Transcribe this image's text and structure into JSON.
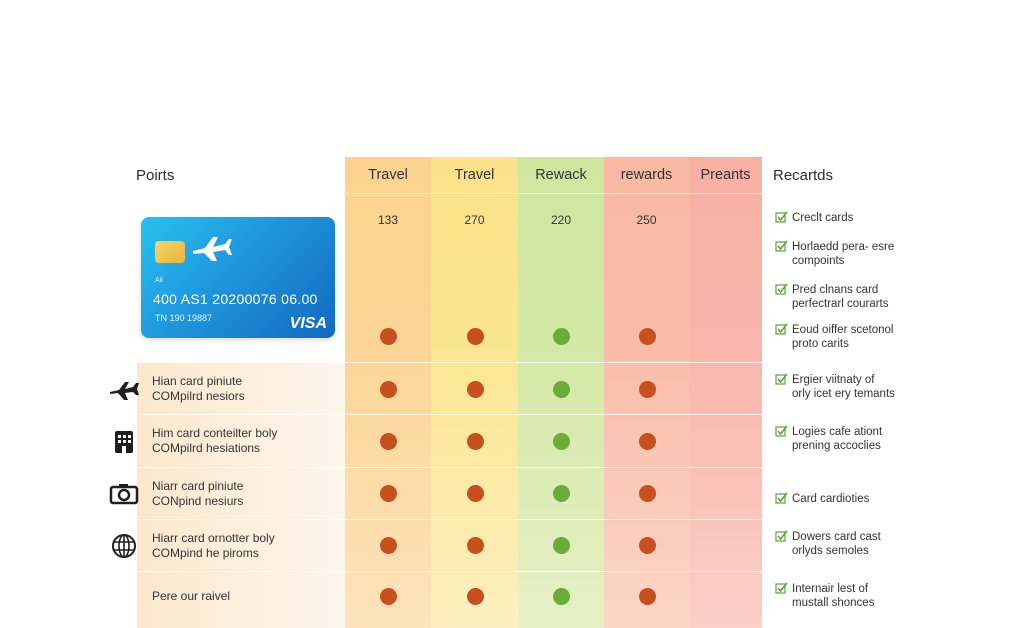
{
  "header": {
    "left_title": "Poirts",
    "right_title": "Recartds",
    "columns": [
      "Travel",
      "Travel",
      "Rewack",
      "rewards",
      "Preants"
    ]
  },
  "points_values": [
    "133",
    "270",
    "220",
    "250"
  ],
  "card": {
    "small_text": "Ail",
    "number": "400 AS1 20200076 06.00",
    "sub_text": "TN 190 19887",
    "brand": "VISA",
    "accent_color": "#1f96dc"
  },
  "rows": [
    {
      "icon": "airplane-icon",
      "label_line1": "Hian card piniute",
      "label_line2": "COMpilrd nesiors"
    },
    {
      "icon": "building-icon",
      "label_line1": "Him card conteilter boly",
      "label_line2": "COMpilrd hesiations"
    },
    {
      "icon": "camera-icon",
      "label_line1": "Niarr card piniute",
      "label_line2": "CONpind nesiurs"
    },
    {
      "icon": "globe-icon",
      "label_line1": "Hiarr card ornotter boly",
      "label_line2": "COMpind he piroms"
    },
    {
      "icon": "",
      "label_line1": "Pere our raivel",
      "label_line2": ""
    }
  ],
  "status_grid": [
    [
      "red",
      "red",
      "green",
      "red"
    ],
    [
      "red",
      "red",
      "green",
      "red"
    ],
    [
      "red",
      "red",
      "green",
      "red"
    ],
    [
      "red",
      "red",
      "green",
      "red"
    ],
    [
      "red",
      "red",
      "green",
      "red"
    ],
    [
      "red",
      "red",
      "green",
      "red"
    ]
  ],
  "status_colors": {
    "red": "#c8501e",
    "green": "#6aab3a",
    "check": "#5aa43a"
  },
  "features": [
    {
      "line1": "Creclt cards",
      "line2": ""
    },
    {
      "line1": "Horlaedd pera- esre",
      "line2": "compoints"
    },
    {
      "line1": "Pred clnans card",
      "line2": "perfectrarl courarts"
    },
    {
      "line1": "Eoud oiffer scetonol",
      "line2": "proto carits"
    },
    {
      "line1": "Ergier viitnaty of",
      "line2": "orly icet ery temants"
    },
    {
      "line1": "Logies cafe ationt",
      "line2": "prening accoclies"
    },
    {
      "line1": "Card cardioties",
      "line2": ""
    },
    {
      "line1": "Dowers card cast",
      "line2": "orlyds semoles"
    },
    {
      "line1": "Internair lest of",
      "line2": "mustall shonces"
    }
  ]
}
